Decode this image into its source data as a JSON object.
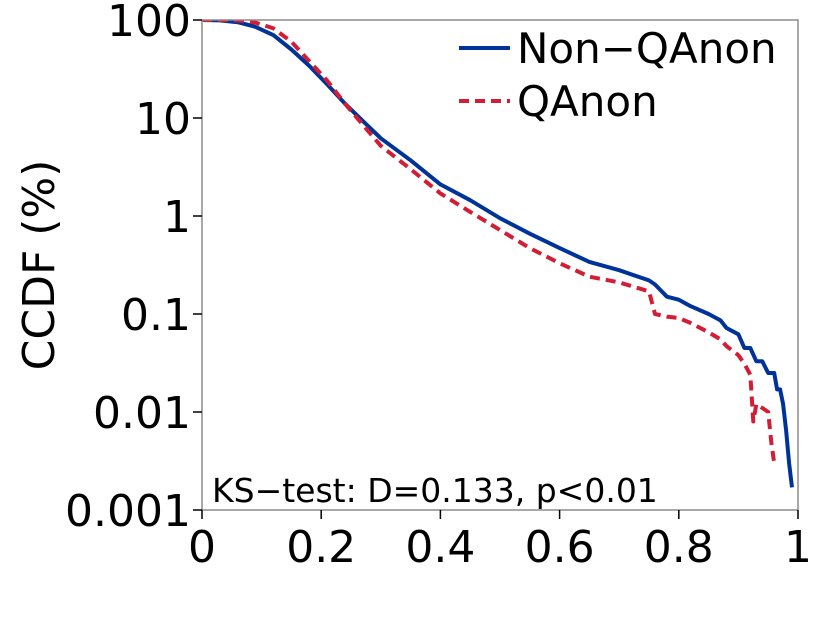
{
  "chart_data": {
    "type": "line",
    "title": "",
    "xlabel": "",
    "ylabel": "CCDF (%)",
    "x_scale": "linear",
    "y_scale": "log",
    "xlim": [
      0,
      1
    ],
    "ylim": [
      0.001,
      100
    ],
    "x_ticks": [
      0,
      0.2,
      0.4,
      0.6,
      0.8,
      1
    ],
    "x_tick_labels": [
      "0",
      "0.2",
      "0.4",
      "0.6",
      "0.8",
      "1"
    ],
    "y_ticks": [
      0.001,
      0.01,
      0.1,
      1,
      10,
      100
    ],
    "y_tick_labels": [
      "0.001",
      "0.01",
      "0.1",
      "1",
      "10",
      "100"
    ],
    "grid": false,
    "legend_position": "top-right",
    "annotation": "KS−test: D=0.133, p<0.01",
    "series": [
      {
        "name": "Non−QAnon",
        "color": "#003399",
        "style": "solid",
        "x": [
          0,
          0.03,
          0.06,
          0.09,
          0.12,
          0.15,
          0.18,
          0.21,
          0.24,
          0.27,
          0.3,
          0.35,
          0.4,
          0.45,
          0.5,
          0.55,
          0.6,
          0.65,
          0.7,
          0.75,
          0.76,
          0.78,
          0.8,
          0.82,
          0.85,
          0.87,
          0.88,
          0.9,
          0.91,
          0.92,
          0.93,
          0.94,
          0.95,
          0.96,
          0.965,
          0.97,
          0.975,
          0.98,
          0.985,
          0.99
        ],
        "y": [
          100,
          99,
          95,
          85,
          70,
          50,
          34,
          22,
          14,
          9.3,
          6.2,
          3.7,
          2.1,
          1.45,
          0.95,
          0.66,
          0.47,
          0.34,
          0.28,
          0.22,
          0.2,
          0.15,
          0.14,
          0.12,
          0.1,
          0.086,
          0.072,
          0.062,
          0.045,
          0.045,
          0.033,
          0.033,
          0.025,
          0.025,
          0.017,
          0.017,
          0.012,
          0.0065,
          0.003,
          0.0017
        ]
      },
      {
        "name": "QAnon",
        "color": "#d41c34",
        "style": "dashed",
        "x": [
          0,
          0.03,
          0.06,
          0.09,
          0.12,
          0.15,
          0.18,
          0.21,
          0.24,
          0.27,
          0.3,
          0.35,
          0.4,
          0.45,
          0.5,
          0.55,
          0.6,
          0.65,
          0.7,
          0.75,
          0.76,
          0.78,
          0.8,
          0.82,
          0.85,
          0.87,
          0.88,
          0.9,
          0.91,
          0.92,
          0.925,
          0.93,
          0.94,
          0.95,
          0.955,
          0.96
        ],
        "y": [
          100,
          100,
          99,
          94,
          82,
          60,
          38,
          24,
          14,
          8.5,
          5.2,
          3.0,
          1.7,
          1.1,
          0.72,
          0.47,
          0.33,
          0.24,
          0.21,
          0.17,
          0.1,
          0.094,
          0.091,
          0.081,
          0.065,
          0.055,
          0.047,
          0.038,
          0.031,
          0.024,
          0.008,
          0.012,
          0.011,
          0.01,
          0.005,
          0.003
        ]
      }
    ]
  }
}
